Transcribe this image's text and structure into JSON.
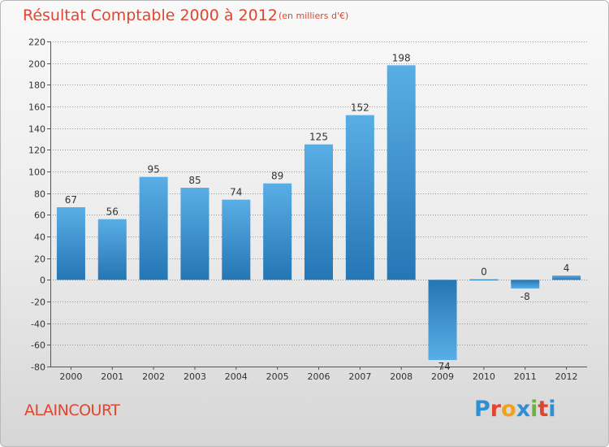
{
  "title": "Résultat Comptable 2000 à 2012",
  "subtitle": "(en milliers d'€)",
  "commune": "ALAINCOURT",
  "logo": {
    "text": "Proxiti",
    "colors": [
      "#2d8fd5",
      "#e0452f",
      "#f2a11c",
      "#2d8fd5",
      "#6cb33f",
      "#e0452f",
      "#2d8fd5"
    ]
  },
  "colors": {
    "title": "#e0452f",
    "bar_light": "#5aaee6",
    "bar_dark": "#2476b4",
    "grid": "#7a7a7a"
  },
  "chart_data": {
    "type": "bar",
    "title": "Résultat Comptable 2000 à 2012",
    "subtitle": "(en milliers d'€)",
    "categories": [
      "2000",
      "2001",
      "2002",
      "2003",
      "2004",
      "2005",
      "2006",
      "2007",
      "2008",
      "2009",
      "2010",
      "2011",
      "2012"
    ],
    "values": [
      67,
      56,
      95,
      85,
      74,
      89,
      125,
      152,
      198,
      -74,
      0,
      -8,
      4
    ],
    "labels": [
      "67",
      "56",
      "95",
      "85",
      "74",
      "89",
      "125",
      "152",
      "198",
      "-74",
      "0",
      "-8",
      "4"
    ],
    "yticks": [
      220,
      200,
      180,
      160,
      140,
      120,
      100,
      80,
      60,
      40,
      20,
      0,
      -20,
      -40,
      -60,
      -80
    ],
    "ylim": [
      -80,
      220
    ],
    "grid": true,
    "legend": "none"
  }
}
